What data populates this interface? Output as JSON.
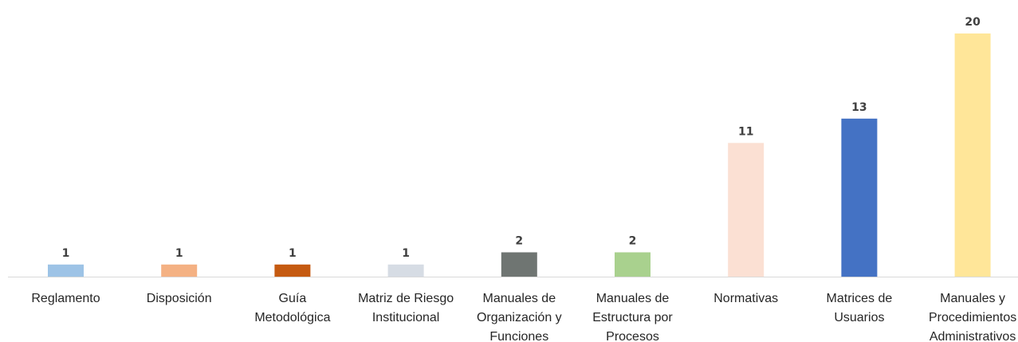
{
  "chart_data": {
    "type": "bar",
    "title": "",
    "xlabel": "",
    "ylabel": "",
    "grid": false,
    "ylim": [
      0,
      20
    ],
    "categories": [
      "Reglamento",
      "Disposición",
      "Guía Metodológica",
      "Matriz de Riesgo Institucional",
      "Manuales de Organización y Funciones",
      "Manuales de Estructura por Procesos",
      "Normativas",
      "Matrices de Usuarios",
      "Manuales y Procedimientos Administrativos"
    ],
    "category_lines": [
      [
        "Reglamento"
      ],
      [
        "Disposición"
      ],
      [
        "Guía",
        "Metodológica"
      ],
      [
        "Matriz de Riesgo",
        "Institucional"
      ],
      [
        "Manuales de",
        "Organización y",
        "Funciones"
      ],
      [
        "Manuales de",
        "Estructura por",
        "Procesos"
      ],
      [
        "Normativas"
      ],
      [
        "Matrices de",
        "Usuarios"
      ],
      [
        "Manuales y",
        "Procedimientos",
        "Administrativos"
      ]
    ],
    "values": [
      1,
      1,
      1,
      1,
      2,
      2,
      11,
      13,
      20
    ],
    "colors": [
      "#9DC3E6",
      "#F4B183",
      "#C55A11",
      "#D6DCE4",
      "#6F7572",
      "#A9D18E",
      "#FBE0D3",
      "#4472C4",
      "#FFE699"
    ]
  }
}
